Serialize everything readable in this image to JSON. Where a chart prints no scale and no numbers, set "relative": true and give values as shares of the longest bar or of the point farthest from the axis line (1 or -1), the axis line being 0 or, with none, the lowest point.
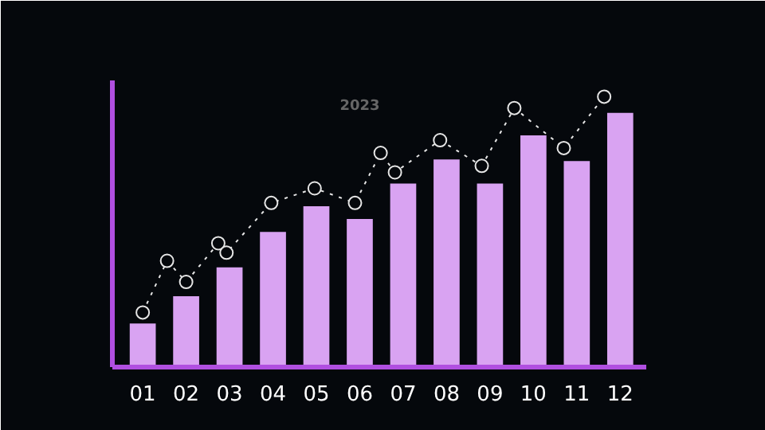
{
  "chart_data": {
    "type": "bar",
    "relative": true,
    "annotations": [
      "2023"
    ],
    "x": [
      1,
      2,
      3,
      4,
      5,
      6,
      7,
      8,
      9,
      10,
      11,
      12
    ],
    "xlim": [
      0.3,
      12.6
    ],
    "xticks": [
      {
        "value": 1,
        "label": "01"
      },
      {
        "value": 2,
        "label": "02"
      },
      {
        "value": 3,
        "label": "03"
      },
      {
        "value": 4,
        "label": "04"
      },
      {
        "value": 5,
        "label": "05"
      },
      {
        "value": 6,
        "label": "06"
      },
      {
        "value": 7,
        "label": "07"
      },
      {
        "value": 8,
        "label": "08"
      },
      {
        "value": 9,
        "label": "09"
      },
      {
        "value": 10,
        "label": "10"
      },
      {
        "value": 11,
        "label": "11"
      },
      {
        "value": 12,
        "label": "12"
      }
    ],
    "series": [
      {
        "color": "#d9a3f2",
        "values": [
          0.161,
          0.262,
          0.369,
          0.5,
          0.595,
          0.548,
          0.679,
          0.768,
          0.679,
          0.857,
          0.762,
          0.94
        ]
      },
      {
        "type": "line",
        "color": "#e6e6e6",
        "line_style": "dotted",
        "marker": "circle",
        "x": [
          1,
          1.56,
          2.0,
          2.74,
          2.93,
          3.96,
          4.96,
          5.89,
          6.48,
          6.81,
          7.85,
          8.81,
          9.56,
          10.7,
          11.63
        ],
        "values": [
          0.202,
          0.393,
          0.315,
          0.458,
          0.423,
          0.607,
          0.661,
          0.607,
          0.792,
          0.72,
          0.839,
          0.744,
          0.958,
          0.81,
          1.0
        ]
      }
    ]
  }
}
